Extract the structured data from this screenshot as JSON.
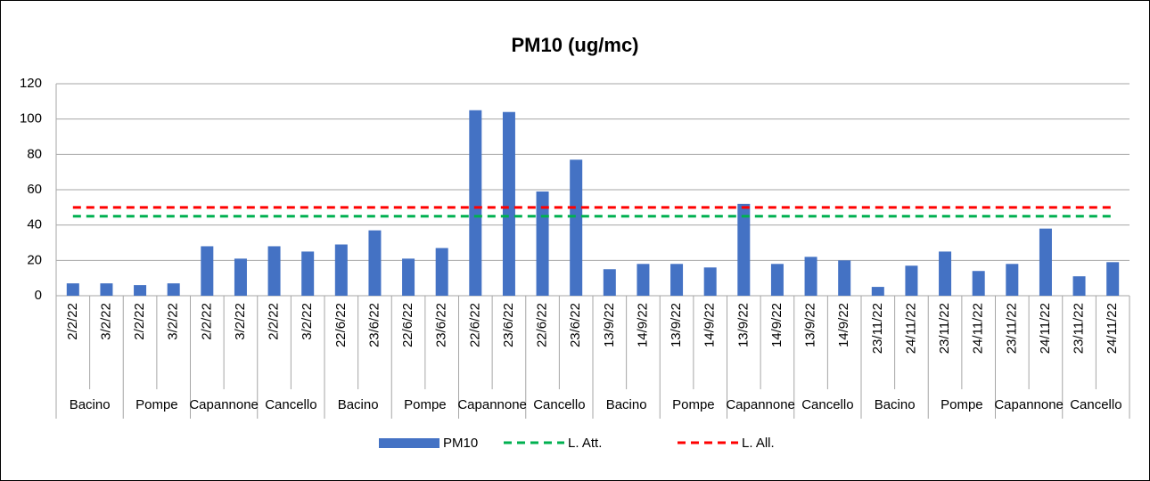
{
  "chart_data": {
    "type": "bar",
    "title": "PM10 (ug/mc)",
    "categories": [
      "2/2/22",
      "3/2/22",
      "2/2/22",
      "3/2/22",
      "2/2/22",
      "3/2/22",
      "2/2/22",
      "3/2/22",
      "22/6/22",
      "23/6/22",
      "22/6/22",
      "23/6/22",
      "22/6/22",
      "23/6/22",
      "22/6/22",
      "23/6/22",
      "13/9/22",
      "14/9/22",
      "13/9/22",
      "14/9/22",
      "13/9/22",
      "14/9/22",
      "13/9/22",
      "14/9/22",
      "23/11/22",
      "24/11/22",
      "23/11/22",
      "24/11/22",
      "23/11/22",
      "24/11/22",
      "23/11/22",
      "24/11/22"
    ],
    "groups": [
      "Bacino",
      "Pompe",
      "Capannone",
      "Cancello",
      "Bacino",
      "Pompe",
      "Capannone",
      "Cancello",
      "Bacino",
      "Pompe",
      "Capannone",
      "Cancello",
      "Bacino",
      "Pompe",
      "Capannone",
      "Cancello"
    ],
    "series": [
      {
        "name": "PM10",
        "type": "bar",
        "color": "#4472c4",
        "values": [
          7,
          7,
          6,
          7,
          28,
          21,
          28,
          25,
          29,
          37,
          21,
          27,
          105,
          104,
          59,
          77,
          15,
          18,
          18,
          16,
          52,
          18,
          22,
          20,
          5,
          17,
          25,
          14,
          18,
          38,
          11,
          19
        ]
      },
      {
        "name": "L. Att.",
        "type": "line",
        "color": "#00b050",
        "values": [
          45,
          45,
          45,
          45,
          45,
          45,
          45,
          45,
          45,
          45,
          45,
          45,
          45,
          45,
          45,
          45,
          45,
          45,
          45,
          45,
          45,
          45,
          45,
          45,
          45,
          45,
          45,
          45,
          45,
          45,
          45,
          45
        ]
      },
      {
        "name": "L. All.",
        "type": "line",
        "color": "#ff0000",
        "values": [
          50,
          50,
          50,
          50,
          50,
          50,
          50,
          50,
          50,
          50,
          50,
          50,
          50,
          50,
          50,
          50,
          50,
          50,
          50,
          50,
          50,
          50,
          50,
          50,
          50,
          50,
          50,
          50,
          50,
          50,
          50,
          50
        ]
      }
    ],
    "ylim": [
      0,
      120
    ],
    "yticks": [
      0,
      20,
      40,
      60,
      80,
      100,
      120
    ],
    "grid": true,
    "legend": "bottom"
  }
}
